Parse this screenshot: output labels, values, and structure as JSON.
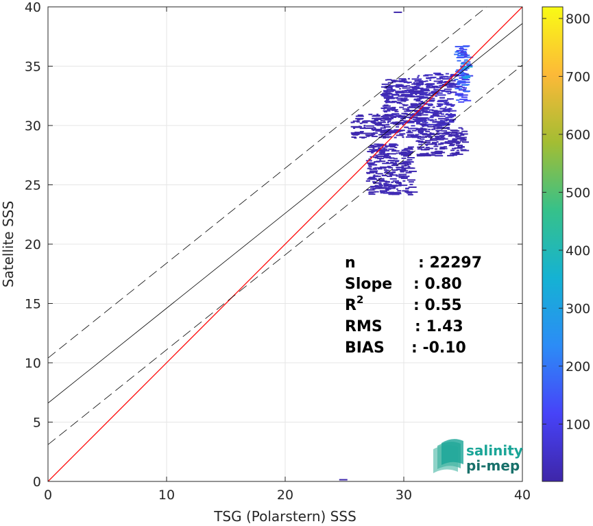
{
  "chart_data": {
    "type": "heatmap",
    "title": "",
    "xlabel": "TSG (Polarstern) SSS",
    "ylabel": "Satellite SSS",
    "xlim": [
      0,
      40
    ],
    "ylim": [
      0,
      40
    ],
    "xticks": [
      0,
      10,
      20,
      30,
      40
    ],
    "yticks": [
      0,
      5,
      10,
      15,
      20,
      25,
      30,
      35,
      40
    ],
    "grid": true,
    "lines": [
      {
        "name": "identity",
        "slope": 1.0,
        "intercept": 0.0,
        "color": "#ff0000",
        "style": "solid"
      },
      {
        "name": "regression",
        "slope": 0.8,
        "intercept": 6.6,
        "color": "#000000",
        "style": "solid"
      },
      {
        "name": "regression-upper",
        "slope": 0.8,
        "intercept": 10.4,
        "color": "#000000",
        "style": "dashed"
      },
      {
        "name": "regression-lower",
        "slope": 0.8,
        "intercept": 3.1,
        "color": "#000000",
        "style": "dashed"
      }
    ],
    "density_clusters": [
      {
        "x_range": [
          34.2,
          35.3
        ],
        "y_range": [
          32.0,
          36.8
        ],
        "level": 160
      },
      {
        "x_range": [
          34.7,
          35.2
        ],
        "y_range": [
          34.0,
          35.8
        ],
        "level": 260
      },
      {
        "x_range": [
          31.0,
          34.0
        ],
        "y_range": [
          30.0,
          34.5
        ],
        "level": 40
      },
      {
        "x_range": [
          28.0,
          31.5
        ],
        "y_range": [
          29.0,
          34.0
        ],
        "level": 25
      },
      {
        "x_range": [
          26.8,
          30.5
        ],
        "y_range": [
          24.2,
          28.5
        ],
        "level": 20
      },
      {
        "x_range": [
          25.5,
          28.5
        ],
        "y_range": [
          29.0,
          31.0
        ],
        "level": 15
      },
      {
        "x_range": [
          31.0,
          35.0
        ],
        "y_range": [
          27.5,
          30.0
        ],
        "level": 15
      }
    ],
    "outliers": [
      {
        "x": 29.5,
        "y": 39.6
      },
      {
        "x": 24.9,
        "y": 0.2
      }
    ],
    "colorbar": {
      "ticks": [
        100,
        200,
        300,
        400,
        500,
        600,
        700,
        800
      ],
      "range": [
        1,
        820
      ],
      "colormap": [
        "#3e26a8",
        "#4743f8",
        "#2c8cf6",
        "#15b2d3",
        "#36c18a",
        "#a3bd33",
        "#fcb938",
        "#f9fb15"
      ]
    },
    "stats": [
      {
        "label": "n",
        "value": ": 22297"
      },
      {
        "label": "Slope",
        "value": ": 0.80"
      },
      {
        "label": "R",
        "sup": "2",
        "value": ": 0.55"
      },
      {
        "label": "RMS",
        "value": ": 1.43"
      },
      {
        "label": "BIAS",
        "value": ": -0.10"
      }
    ]
  },
  "logo": {
    "line1": "salinity",
    "line2": "pi-mep",
    "color": "#1aa597"
  }
}
